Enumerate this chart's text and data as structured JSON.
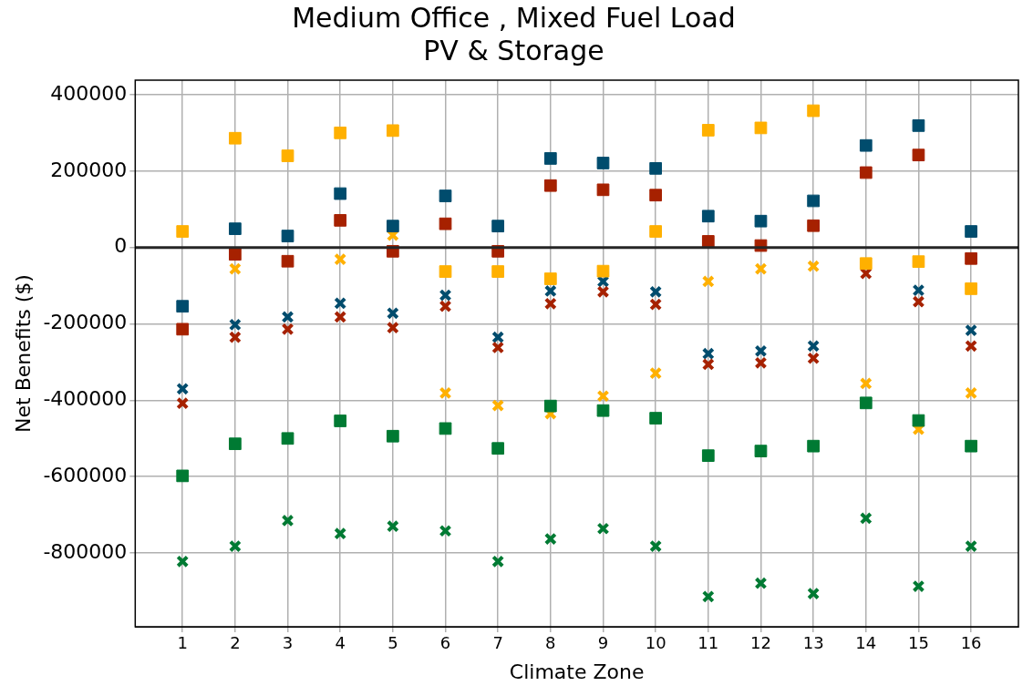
{
  "chart_data": {
    "type": "scatter",
    "title": "Medium Office , Mixed Fuel Load\nPV & Storage",
    "xlabel": "Climate Zone",
    "ylabel": "Net Benefits ($)",
    "x": [
      1,
      2,
      3,
      4,
      5,
      6,
      7,
      8,
      9,
      10,
      11,
      12,
      13,
      14,
      15,
      16
    ],
    "xlim": [
      0.1,
      16.9
    ],
    "xticks": [
      1,
      2,
      3,
      4,
      5,
      6,
      7,
      8,
      9,
      10,
      11,
      12,
      13,
      14,
      15,
      16
    ],
    "ylim": [
      -993000,
      438000
    ],
    "yticks": [
      -800000,
      -600000,
      -400000,
      -200000,
      0,
      200000,
      400000
    ],
    "grid": true,
    "legend": false,
    "ref_lines": [
      {
        "axis": "y",
        "value": 0,
        "color": "#262626"
      }
    ],
    "series": [
      {
        "marker": "cross",
        "color": "#004c6d",
        "values": [
          -370000,
          -202000,
          -182000,
          -146000,
          -172000,
          -125000,
          -235000,
          -114000,
          -89000,
          -116000,
          -278000,
          -271000,
          -258000,
          null,
          -112000,
          -217000
        ]
      },
      {
        "marker": "cross",
        "color": "#a62100",
        "values": [
          -408000,
          -235000,
          -214000,
          -182000,
          -210000,
          -154000,
          -262000,
          -147000,
          -116000,
          -149000,
          -306000,
          -302000,
          -290000,
          -68000,
          -142000,
          -258000
        ]
      },
      {
        "marker": "cross",
        "color": "#ffb000",
        "values": [
          null,
          -56000,
          null,
          -31000,
          32000,
          -381000,
          -414000,
          -435000,
          -389000,
          -329000,
          -89000,
          -56000,
          -49000,
          -356000,
          -476000,
          -381000
        ]
      },
      {
        "marker": "cross",
        "color": "#007a33",
        "values": [
          -822000,
          -782000,
          -715000,
          -749000,
          -730000,
          -742000,
          -822000,
          -763000,
          -736000,
          -782000,
          -914000,
          -879000,
          -906000,
          -709000,
          -887000,
          -782000
        ]
      },
      {
        "marker": "square",
        "color": "#004c6d",
        "values": [
          -154000,
          49000,
          30000,
          141000,
          56000,
          135000,
          56000,
          233000,
          221000,
          207000,
          82000,
          69000,
          122000,
          267000,
          319000,
          42000
        ]
      },
      {
        "marker": "square",
        "color": "#ffb000",
        "values": [
          42000,
          286000,
          240000,
          300000,
          306000,
          -63000,
          -63000,
          -82000,
          -62000,
          42000,
          307000,
          313000,
          358000,
          -42000,
          -37000,
          -108000
        ]
      },
      {
        "marker": "square",
        "color": "#a62100",
        "values": [
          -214000,
          -18000,
          -36000,
          71000,
          -10000,
          62000,
          -10000,
          162000,
          151000,
          137000,
          16000,
          5000,
          57000,
          196000,
          242000,
          -29000
        ]
      },
      {
        "marker": "square",
        "color": "#007a33",
        "values": [
          -598000,
          -514000,
          -500000,
          -454000,
          -494000,
          -474000,
          -526000,
          -415000,
          -427000,
          -447000,
          -545000,
          -533000,
          -520000,
          -407000,
          -453000,
          -520000
        ]
      }
    ]
  }
}
